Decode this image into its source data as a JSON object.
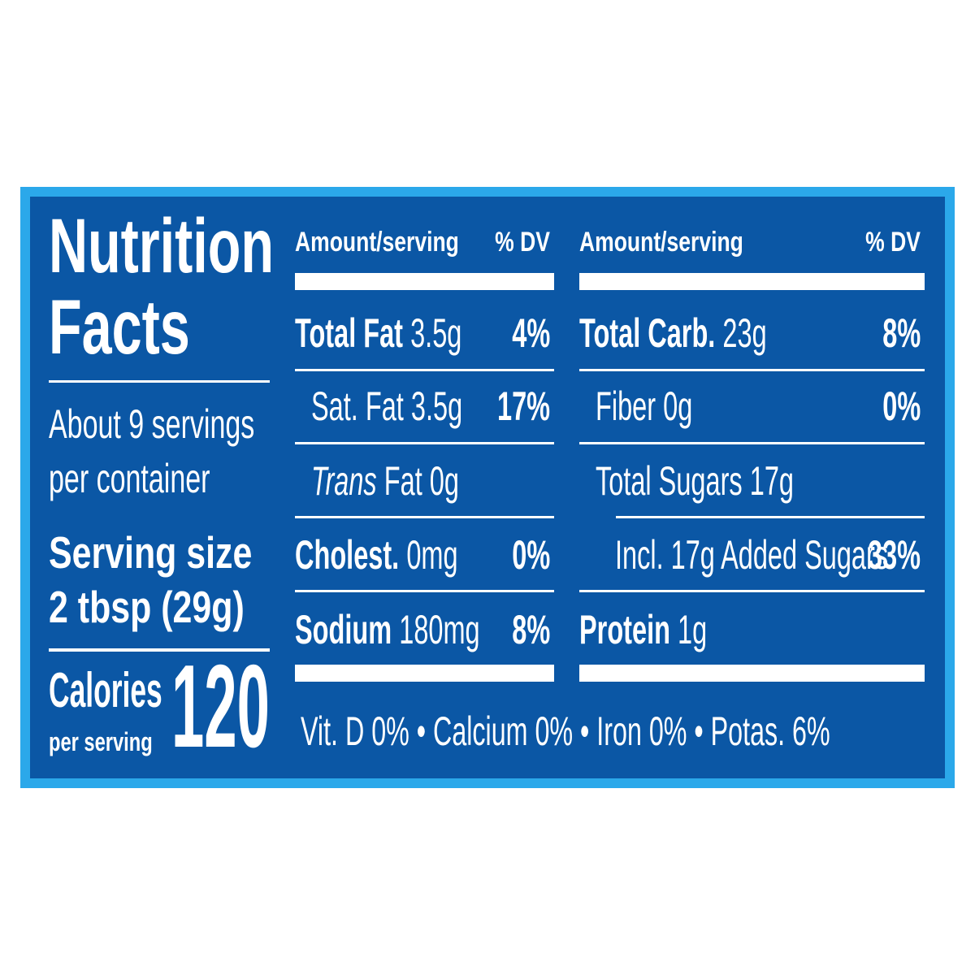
{
  "title_lines": [
    "Nutrition",
    "Facts"
  ],
  "servings_lines": [
    "About 9 servings",
    "per container"
  ],
  "serving_size": {
    "label": "Serving size",
    "value": "2 tbsp (29g)"
  },
  "calories": {
    "label": "Calories",
    "sublabel": "per serving",
    "value": 120
  },
  "columns": [
    {
      "header": {
        "amount": "Amount/serving",
        "dv": "% DV"
      },
      "rows": [
        {
          "name": "Total Fat",
          "amount": "3.5g",
          "dv": "4%",
          "style": "bold",
          "indent": 0
        },
        {
          "name": "Sat. Fat",
          "amount": "3.5g",
          "dv": "17%",
          "style": "regular",
          "indent": 1
        },
        {
          "name": "Trans",
          "amount": "Fat 0g",
          "style": "italic",
          "indent": 1
        },
        {
          "name": "Cholest.",
          "amount": "0mg",
          "dv": "0%",
          "style": "bold",
          "indent": 0
        },
        {
          "name": "Sodium",
          "amount": "180mg",
          "dv": "8%",
          "style": "bold",
          "indent": 0
        }
      ]
    },
    {
      "header": {
        "amount": "Amount/serving",
        "dv": "% DV"
      },
      "rows": [
        {
          "name": "Total Carb.",
          "amount": "23g",
          "dv": "8%",
          "style": "bold",
          "indent": 0
        },
        {
          "name": "Fiber",
          "amount": "0g",
          "dv": "0%",
          "style": "regular",
          "indent": 1
        },
        {
          "name": "Total Sugars",
          "amount": "17g",
          "style": "regular",
          "indent": 1
        },
        {
          "name": "Incl. 17g Added Sugars",
          "dv": "33%",
          "style": "regular",
          "indent": 2
        },
        {
          "name": "Protein",
          "amount": "1g",
          "style": "bold",
          "indent": 0
        }
      ]
    }
  ],
  "footer": "Vit. D 0% • Calcium 0% • Iron 0% • Potas. 6%"
}
